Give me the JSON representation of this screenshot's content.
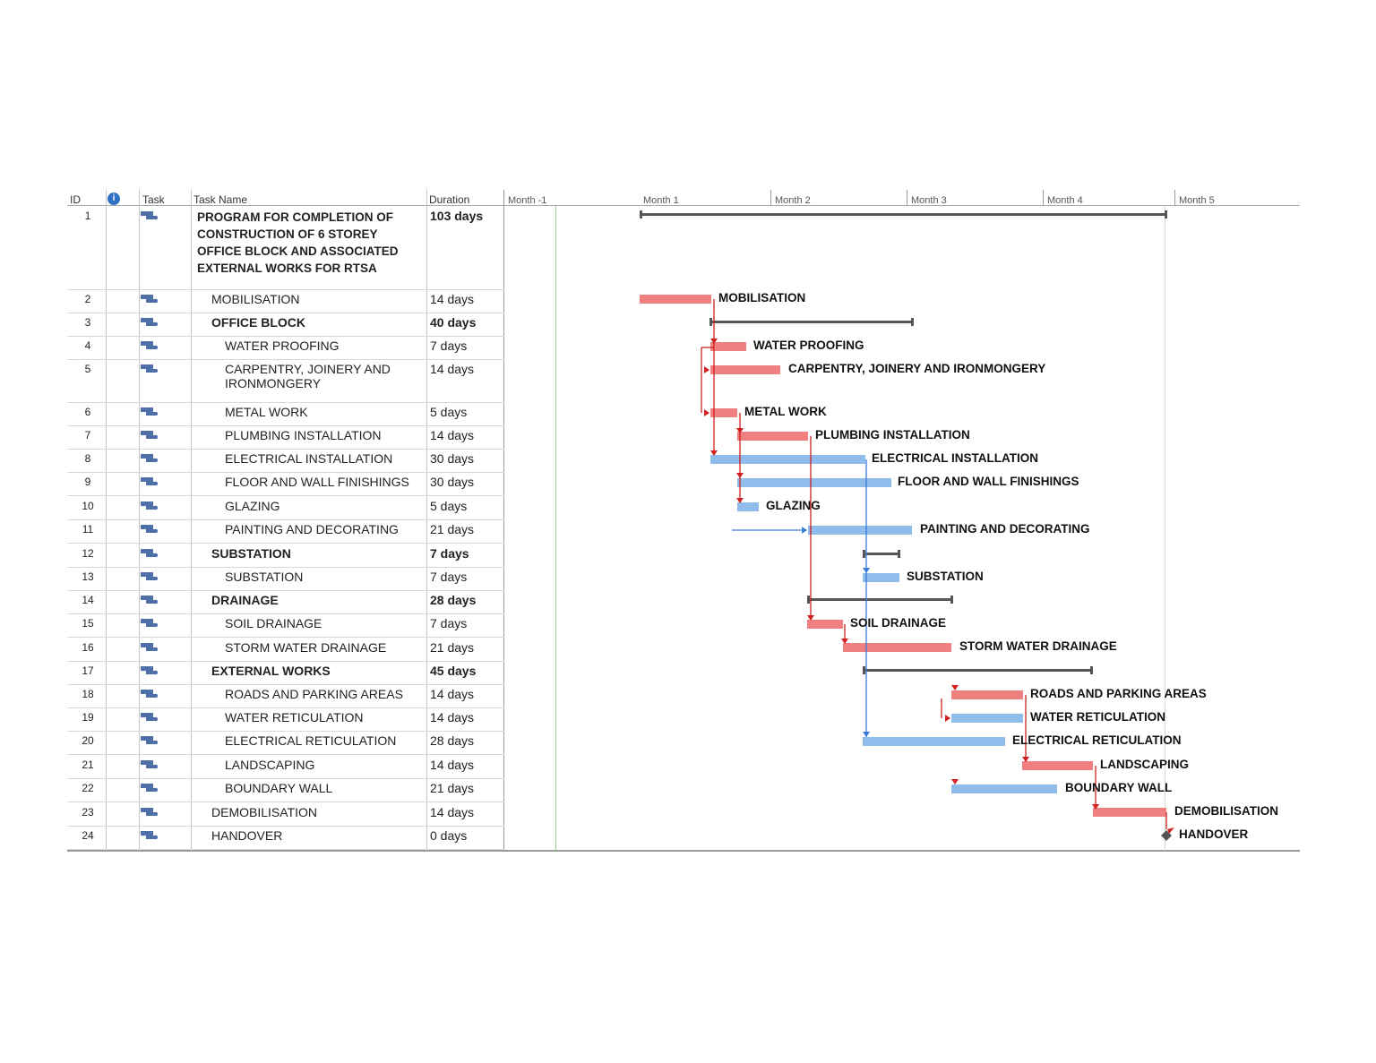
{
  "columns": {
    "id": "ID",
    "task_mode": "Task",
    "task_name": "Task Name",
    "duration": "Duration"
  },
  "timescale": [
    "Month -1",
    "Month 1",
    "Month 2",
    "Month 3",
    "Month 4",
    "Month 5"
  ],
  "colors": {
    "critical_bar": "#f08080",
    "normal_bar": "#8fbcea",
    "summary_bar": "#555555",
    "critical_link": "#d02020",
    "normal_link": "#3a7ad8"
  },
  "tasks": [
    {
      "id": "1",
      "name": "PROGRAM FOR COMPLETION OF CONSTRUCTION OF 6 STOREY OFFICE BLOCK AND ASSOCIATED EXTERNAL WORKS FOR RTSA",
      "duration": "103 days",
      "bold": true
    },
    {
      "id": "2",
      "name": "MOBILISATION",
      "duration": "14 days",
      "label": "MOBILISATION"
    },
    {
      "id": "3",
      "name": "OFFICE BLOCK",
      "duration": "40 days",
      "bold": true
    },
    {
      "id": "4",
      "name": "WATER PROOFING",
      "duration": "7 days",
      "label": "WATER PROOFING"
    },
    {
      "id": "5",
      "name": "CARPENTRY, JOINERY AND IRONMONGERY",
      "duration": "14 days",
      "label": "CARPENTRY, JOINERY AND IRONMONGERY"
    },
    {
      "id": "6",
      "name": "METAL WORK",
      "duration": "5 days",
      "label": "METAL WORK"
    },
    {
      "id": "7",
      "name": "PLUMBING INSTALLATION",
      "duration": "14 days",
      "label": "PLUMBING INSTALLATION"
    },
    {
      "id": "8",
      "name": "ELECTRICAL INSTALLATION",
      "duration": "30 days",
      "label": "ELECTRICAL INSTALLATION"
    },
    {
      "id": "9",
      "name": "FLOOR AND WALL FINISHINGS",
      "duration": "30 days",
      "label": "FLOOR AND WALL FINISHINGS"
    },
    {
      "id": "10",
      "name": "GLAZING",
      "duration": "5 days",
      "label": "GLAZING"
    },
    {
      "id": "11",
      "name": "PAINTING AND DECORATING",
      "duration": "21 days",
      "label": "PAINTING AND DECORATING"
    },
    {
      "id": "12",
      "name": "SUBSTATION",
      "duration": "7 days",
      "bold": true
    },
    {
      "id": "13",
      "name": "SUBSTATION",
      "duration": "7 days",
      "label": "SUBSTATION"
    },
    {
      "id": "14",
      "name": "DRAINAGE",
      "duration": "28 days",
      "bold": true
    },
    {
      "id": "15",
      "name": "SOIL DRAINAGE",
      "duration": "7 days",
      "label": "SOIL DRAINAGE"
    },
    {
      "id": "16",
      "name": "STORM WATER DRAINAGE",
      "duration": "21 days",
      "label": "STORM WATER DRAINAGE"
    },
    {
      "id": "17",
      "name": "EXTERNAL WORKS",
      "duration": "45 days",
      "bold": true
    },
    {
      "id": "18",
      "name": "ROADS AND PARKING AREAS",
      "duration": "14 days",
      "label": "ROADS AND PARKING AREAS"
    },
    {
      "id": "19",
      "name": "WATER RETICULATION",
      "duration": "14 days",
      "label": "WATER RETICULATION"
    },
    {
      "id": "20",
      "name": "ELECTRICAL RETICULATION",
      "duration": "28 days",
      "label": "ELECTRICAL RETICULATION"
    },
    {
      "id": "21",
      "name": "LANDSCAPING",
      "duration": "14 days",
      "label": "LANDSCAPING"
    },
    {
      "id": "22",
      "name": "BOUNDARY WALL",
      "duration": "21 days",
      "label": "BOUNDARY WALL"
    },
    {
      "id": "23",
      "name": "DEMOBILISATION",
      "duration": "14 days",
      "label": "DEMOBILISATION"
    },
    {
      "id": "24",
      "name": "HANDOVER",
      "duration": "0 days",
      "label": "HANDOVER"
    }
  ]
}
